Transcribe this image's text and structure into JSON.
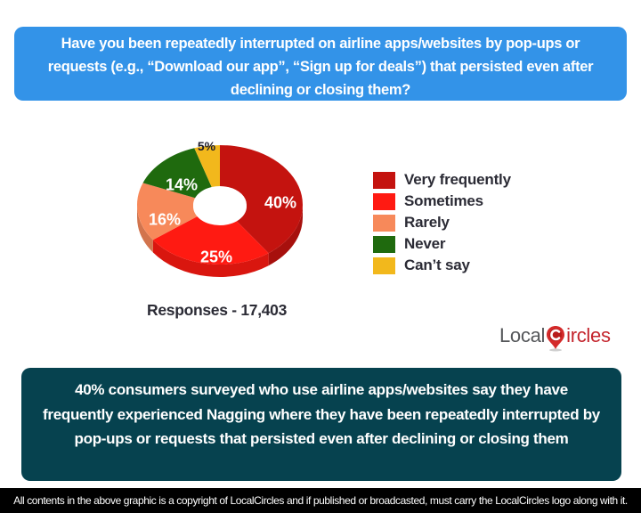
{
  "question": "Have you been repeatedly interrupted on airline apps/websites by pop-ups or requests (e.g., “Download our app”, “Sign up for deals”) that persisted even after declining or closing them?",
  "responses_label": "Responses - 17,403",
  "legend": [
    {
      "label": "Very frequently",
      "color": "#c4130f"
    },
    {
      "label": "Sometimes",
      "color": "#ff1a12"
    },
    {
      "label": "Rarely",
      "color": "#f7895a"
    },
    {
      "label": "Never",
      "color": "#1f6a0e"
    },
    {
      "label": "Can’t say",
      "color": "#f2b81c"
    }
  ],
  "slice_labels": [
    "40%",
    "25%",
    "16%",
    "14%",
    "5%"
  ],
  "logo": {
    "part1": "Local",
    "part2": "ircles"
  },
  "takeaway": "40% consumers surveyed who use airline apps/websites say they have frequently experienced Nagging where they have been repeatedly interrupted by pop-ups or requests that persisted even after declining or closing them",
  "footer": "All contents in the above graphic is a copyright of LocalCircles and if published or broadcasted, must carry the LocalCircles logo along with it.",
  "colors": {
    "question_bg": "#3393e8",
    "takeaway_bg": "#06424f",
    "footer_bg": "#000000"
  },
  "chart_data": {
    "type": "pie",
    "title": "Have you been repeatedly interrupted on airline apps/websites by pop-ups or requests (e.g., “Download our app”, “Sign up for deals”) that persisted even after declining or closing them?",
    "categories": [
      "Very frequently",
      "Sometimes",
      "Rarely",
      "Never",
      "Can’t say"
    ],
    "values": [
      40,
      25,
      16,
      14,
      5
    ],
    "unit": "%",
    "colors": [
      "#c4130f",
      "#ff1a12",
      "#f7895a",
      "#1f6a0e",
      "#f2b81c"
    ],
    "donut": true,
    "style": "3d",
    "legend_position": "right",
    "total_responses": 17403
  }
}
